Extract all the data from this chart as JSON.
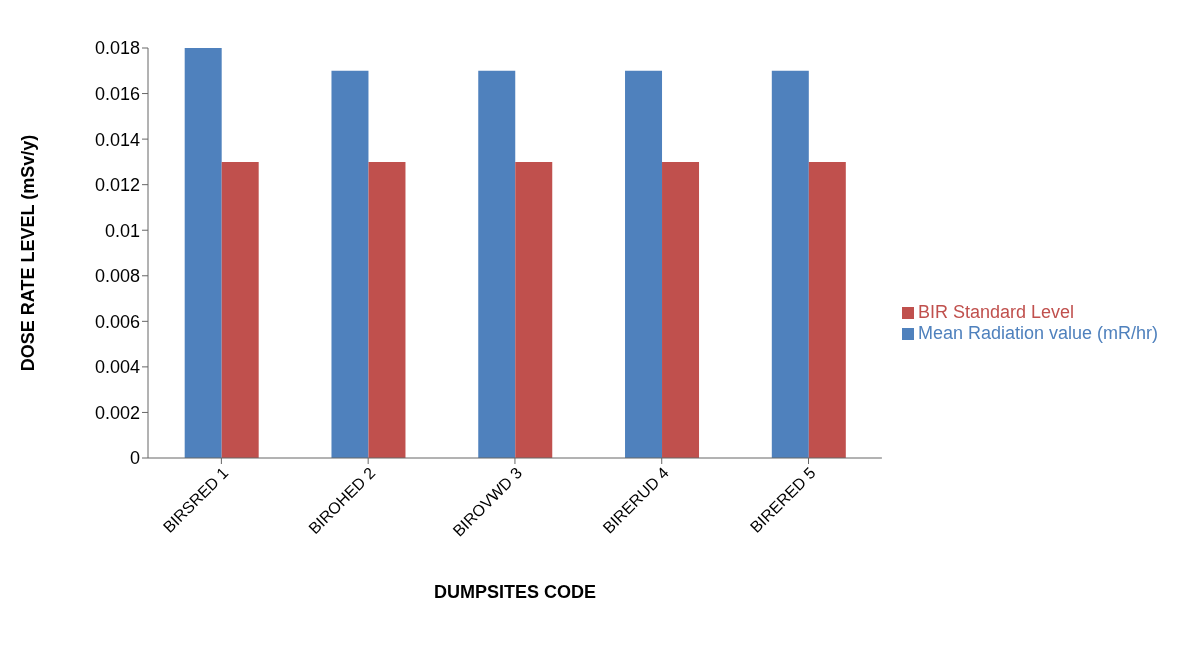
{
  "chart_data": {
    "type": "bar",
    "xlabel": "DUMPSITES CODE",
    "ylabel": "DOSE RATE LEVEL (mSv/y)",
    "categories": [
      "BIRSRED 1",
      "BIROHED 2",
      "BIROVWD 3",
      "BIRERUD 4",
      "BIRERED 5"
    ],
    "series": [
      {
        "name": "Mean Radiation value (mR/hr)",
        "color": "#4f81bd",
        "values": [
          0.018,
          0.017,
          0.017,
          0.017,
          0.017
        ]
      },
      {
        "name": "BIR Standard Level",
        "color": "#c0504d",
        "values": [
          0.013,
          0.013,
          0.013,
          0.013,
          0.013
        ]
      }
    ],
    "ylim": [
      0,
      0.018
    ],
    "yticks": [
      0,
      0.002,
      0.004,
      0.006,
      0.008,
      0.01,
      0.012,
      0.014,
      0.016,
      0.018
    ],
    "grid": false,
    "legend": "right"
  }
}
